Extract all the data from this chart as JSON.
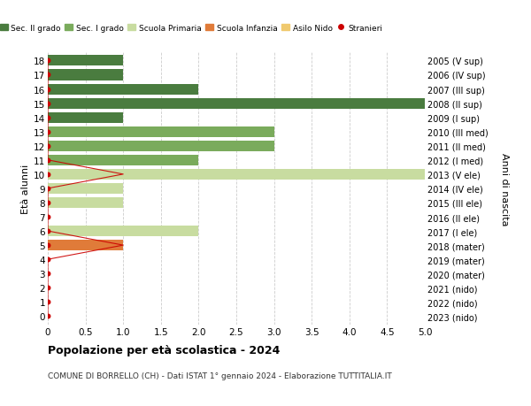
{
  "ages": [
    0,
    1,
    2,
    3,
    4,
    5,
    6,
    7,
    8,
    9,
    10,
    11,
    12,
    13,
    14,
    15,
    16,
    17,
    18
  ],
  "right_labels": [
    "2023 (nido)",
    "2022 (nido)",
    "2021 (nido)",
    "2020 (mater)",
    "2019 (mater)",
    "2018 (mater)",
    "2017 (I ele)",
    "2016 (II ele)",
    "2015 (III ele)",
    "2014 (IV ele)",
    "2013 (V ele)",
    "2012 (I med)",
    "2011 (II med)",
    "2010 (III med)",
    "2009 (I sup)",
    "2008 (II sup)",
    "2007 (III sup)",
    "2006 (IV sup)",
    "2005 (V sup)"
  ],
  "bar_values": [
    0,
    0,
    0,
    0,
    0,
    1,
    2,
    0,
    1,
    1,
    5,
    2,
    3,
    3,
    1,
    5,
    2,
    1,
    1
  ],
  "bar_colors": [
    "none",
    "none",
    "none",
    "none",
    "none",
    "#e07b39",
    "#c8dca0",
    "none",
    "#c8dca0",
    "#c8dca0",
    "#c8dca0",
    "#7aab5c",
    "#7aab5c",
    "#7aab5c",
    "#4a7c3f",
    "#4a7c3f",
    "#4a7c3f",
    "#4a7c3f",
    "#4a7c3f"
  ],
  "stranieri_values": [
    0,
    0,
    0,
    0,
    0,
    1,
    0,
    0,
    0,
    0,
    1,
    0,
    0,
    0,
    0,
    0,
    0,
    0,
    0
  ],
  "legend_labels": [
    "Sec. II grado",
    "Sec. I grado",
    "Scuola Primaria",
    "Scuola Infanzia",
    "Asilo Nido",
    "Stranieri"
  ],
  "legend_colors": [
    "#4a7c3f",
    "#7aab5c",
    "#c8dca0",
    "#e07b39",
    "#f0c96e",
    "#cc0000"
  ],
  "title_bold": "Popolazione per età scolastica - 2024",
  "subtitle": "COMUNE DI BORRELLO (CH) - Dati ISTAT 1° gennaio 2024 - Elaborazione TUTTITALIA.IT",
  "ylabel_left": "Età alunni",
  "ylabel_right": "Anni di nascita",
  "xlim": [
    0,
    5.0
  ],
  "background_color": "#ffffff",
  "grid_color": "#cccccc",
  "bar_height": 0.75,
  "stranieri_color": "#cc0000",
  "stranieri_dot_size": 18
}
